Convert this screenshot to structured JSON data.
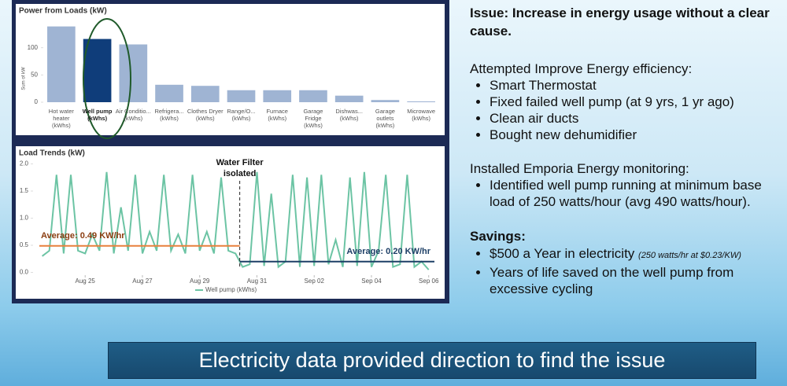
{
  "chart_data": [
    {
      "type": "bar",
      "title": "Power from Loads (kW)",
      "ylabel": "Sum of kW",
      "categories": [
        "Hot water heater (kWhs)",
        "Well pump (kWhs)",
        "Air Conditio... (kWhs)",
        "Refrigera... (kWhs)",
        "Clothes Dryer (kWhs)",
        "Range/O... (kWhs)",
        "Furnace (kWhs)",
        "Garage Fridge (kWhs)",
        "Dishwas... (kWhs)",
        "Garage outlets (kWhs)",
        "Microwave (kWhs)"
      ],
      "values": [
        139,
        116,
        106,
        32,
        30,
        22,
        22,
        22,
        12,
        4,
        1.5
      ],
      "colors": [
        "#9fb4d3",
        "#0f3d7a",
        "#9fb4d3",
        "#9fb4d3",
        "#9fb4d3",
        "#9fb4d3",
        "#9fb4d3",
        "#9fb4d3",
        "#9fb4d3",
        "#9fb4d3",
        "#9fb4d3"
      ],
      "ylim": [
        0,
        150
      ],
      "yticks": [
        0,
        50,
        100
      ],
      "grid": false
    },
    {
      "type": "line",
      "title": "Load Trends (kW)",
      "x": [
        -1.5,
        -1.25,
        -1,
        -0.75,
        -0.5,
        -0.25,
        0,
        0.25,
        0.5,
        0.75,
        1,
        1.25,
        1.5,
        1.75,
        2,
        2.25,
        2.5,
        2.75,
        3,
        3.25,
        3.5,
        3.75,
        4,
        4.25,
        4.5,
        4.75,
        5,
        5.25,
        5.5,
        5.75,
        6,
        6.25,
        6.5,
        6.75,
        7,
        7.25,
        7.5,
        7.75,
        8,
        8.25,
        8.5,
        8.75,
        9,
        9.25,
        9.5,
        9.75,
        10,
        10.25,
        10.5,
        10.75,
        11,
        11.25,
        11.5,
        11.75,
        12
      ],
      "series": [
        {
          "name": "Well pump (kWhs)",
          "color": "#6cc4a4",
          "values": [
            0.3,
            0.4,
            1.8,
            0.35,
            1.8,
            0.4,
            0.35,
            0.7,
            0.4,
            1.85,
            0.35,
            1.2,
            0.4,
            1.8,
            0.35,
            0.75,
            0.4,
            1.8,
            0.4,
            0.7,
            0.35,
            1.8,
            0.4,
            0.75,
            0.35,
            1.75,
            0.4,
            0.35,
            0.1,
            0.15,
            1.85,
            0.12,
            1.45,
            0.1,
            0.2,
            1.8,
            0.1,
            1.75,
            0.12,
            1.8,
            0.15,
            0.6,
            0.1,
            1.75,
            0.12,
            1.85,
            0.1,
            0.4,
            1.8,
            0.1,
            0.15,
            1.8,
            0.1,
            0.2,
            0.05
          ]
        }
      ],
      "xlim": [
        -1.6,
        12.2
      ],
      "xticks": [
        {
          "value": 0,
          "label": "Aug 25"
        },
        {
          "value": 2,
          "label": "Aug 27"
        },
        {
          "value": 4,
          "label": "Aug 29"
        },
        {
          "value": 6,
          "label": "Aug 31"
        },
        {
          "value": 8,
          "label": "Sep 02"
        },
        {
          "value": 10,
          "label": "Sep 04"
        },
        {
          "value": 12,
          "label": "Sep 06"
        }
      ],
      "ylim": [
        -0.05,
        2.05
      ],
      "yticks": [
        {
          "value": 0,
          "label": "0.0"
        },
        {
          "value": 0.5,
          "label": "0.5"
        },
        {
          "value": 1,
          "label": "1.0"
        },
        {
          "value": 1.5,
          "label": "1.5"
        },
        {
          "value": 2,
          "label": "2.0"
        }
      ],
      "grid": false,
      "reference_lines": [
        {
          "label": "Average: 0.49 KW/hr",
          "value": 0.49,
          "x_range": [
            -1.6,
            5.4
          ],
          "color": "#e8803c"
        },
        {
          "label": "Average: 0.20 KW/hr",
          "value": 0.2,
          "x_range": [
            5.4,
            12.2
          ],
          "color": "#1d3f66"
        }
      ],
      "annotations": [
        {
          "text": "Water Filter isolated",
          "x": 5.4
        }
      ]
    }
  ],
  "issue": "Issue: Increase in energy usage without a clear cause.",
  "sections": [
    {
      "heading": "Attempted Improve Energy efficiency:",
      "bullets": [
        "Smart Thermostat",
        "Fixed failed well pump (at 9 yrs, 1 yr ago)",
        "Clean air ducts",
        "Bought new dehumidifier"
      ]
    },
    {
      "heading": "Installed Emporia Energy monitoring:",
      "bullets": [
        "Identified well pump running at minimum base load of 250 watts/hour (avg 490 watts/hour)."
      ]
    }
  ],
  "savings": {
    "heading": "Savings:",
    "bullets": [
      {
        "text": "$500 a Year in electricity",
        "note": "(250 watts/hr at $0.23/KW)"
      },
      {
        "text": "Years of life saved on the well pump from excessive cycling"
      }
    ]
  },
  "banner": "Electricity data provided direction to find the issue"
}
